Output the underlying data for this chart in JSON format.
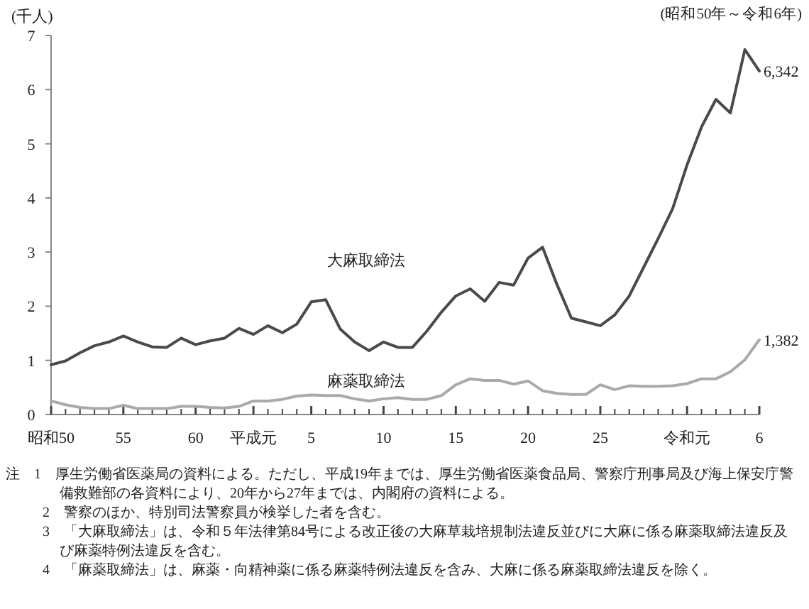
{
  "chart_data": {
    "type": "line",
    "subtitle": "(昭和50年～令和6年)",
    "ylabel": "(千人)",
    "annotations": [
      "注　1　厚生労働省医薬局の資料による。ただし、平成19年までは、厚生労働省医薬食品局、警察庁刑事局及び海上保安庁警備救難部の各資料により、20年から27年までは、内閣府の資料による。",
      "2　警察のほか、特別司法警察員が検挙した者を含む。",
      "3　「大麻取締法」は、令和５年法律第84号による改正後の大麻草栽培規制法違反並びに大麻に係る麻薬取締法違反及び麻薬特例法違反を含む。",
      "4　「麻薬取締法」は、麻薬・向精神薬に係る麻薬特例法違反を含み、大麻に係る麻薬取締法違反を除く。",
      {
        "text": "6,342",
        "x": "6",
        "y": 6.342
      },
      {
        "text": "1,382",
        "x": "6",
        "y": 1.382
      }
    ],
    "categories": [
      "昭和50",
      null,
      null,
      null,
      null,
      "55",
      null,
      null,
      null,
      null,
      "60",
      null,
      null,
      null,
      "平成元",
      null,
      null,
      null,
      "5",
      null,
      null,
      null,
      null,
      "10",
      null,
      null,
      null,
      null,
      "15",
      null,
      null,
      null,
      null,
      "20",
      null,
      null,
      null,
      null,
      "25",
      null,
      null,
      null,
      null,
      null,
      "令和元",
      null,
      null,
      null,
      null,
      "6"
    ],
    "series": [
      {
        "name": "大麻取締法",
        "color": "#4a4a4a",
        "values": [
          0.92,
          0.99,
          1.14,
          1.27,
          1.34,
          1.45,
          1.34,
          1.25,
          1.24,
          1.41,
          1.29,
          1.36,
          1.41,
          1.59,
          1.48,
          1.64,
          1.51,
          1.67,
          2.08,
          2.12,
          1.58,
          1.34,
          1.18,
          1.34,
          1.24,
          1.24,
          1.54,
          1.89,
          2.19,
          2.32,
          2.09,
          2.44,
          2.39,
          2.89,
          3.09,
          2.4,
          1.78,
          1.71,
          1.64,
          1.84,
          2.19,
          2.72,
          3.25,
          3.8,
          4.61,
          5.31,
          5.82,
          5.57,
          6.74,
          6.342
        ]
      },
      {
        "name": "麻薬取締法",
        "color": "#aaaaaa",
        "values": [
          0.25,
          0.18,
          0.13,
          0.11,
          0.11,
          0.17,
          0.11,
          0.11,
          0.11,
          0.15,
          0.15,
          0.13,
          0.12,
          0.15,
          0.25,
          0.25,
          0.28,
          0.34,
          0.36,
          0.35,
          0.35,
          0.29,
          0.25,
          0.29,
          0.31,
          0.28,
          0.28,
          0.35,
          0.55,
          0.66,
          0.63,
          0.63,
          0.56,
          0.62,
          0.44,
          0.39,
          0.37,
          0.37,
          0.55,
          0.46,
          0.53,
          0.52,
          0.52,
          0.53,
          0.57,
          0.66,
          0.66,
          0.79,
          1.01,
          1.382
        ]
      }
    ],
    "ylim": [
      0,
      7
    ],
    "yticks": [
      0,
      1,
      2,
      3,
      4,
      5,
      6,
      7
    ]
  }
}
